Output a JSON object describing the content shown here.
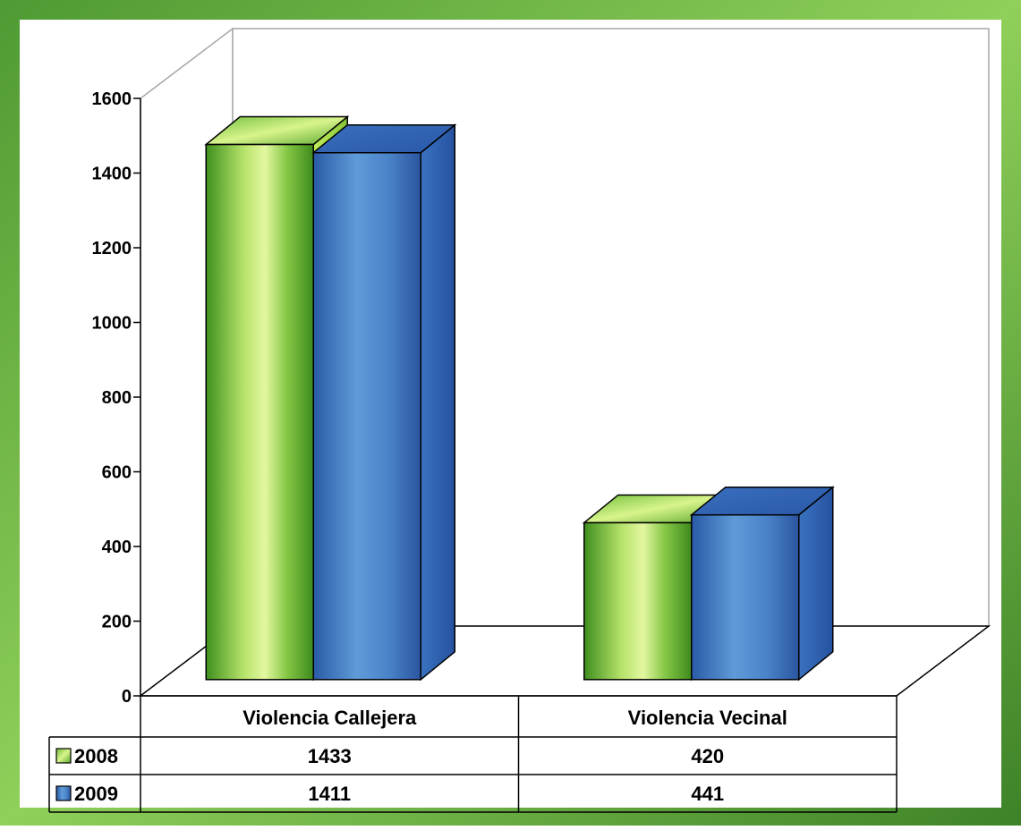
{
  "chart_data": {
    "type": "bar",
    "categories": [
      "Violencia Callejera",
      "Violencia Vecinal"
    ],
    "series": [
      {
        "name": "2008",
        "values": [
          1433,
          420
        ],
        "color": "#7cc242"
      },
      {
        "name": "2009",
        "values": [
          1411,
          441
        ],
        "color": "#3d74b8"
      }
    ],
    "ylim": [
      0,
      1600
    ],
    "yticks": [
      "0",
      "200",
      "400",
      "600",
      "800",
      "1000",
      "1200",
      "1400",
      "1600"
    ],
    "data_table": {
      "headers": [
        "Violencia Callejera",
        "Violencia Vecinal"
      ],
      "rows": [
        {
          "label": "2008",
          "cells": [
            "1433",
            "420"
          ]
        },
        {
          "label": "2009",
          "cells": [
            "1411",
            "441"
          ]
        }
      ]
    },
    "frame_color": "#3b8a2a",
    "style": "3d-clustered-column"
  }
}
